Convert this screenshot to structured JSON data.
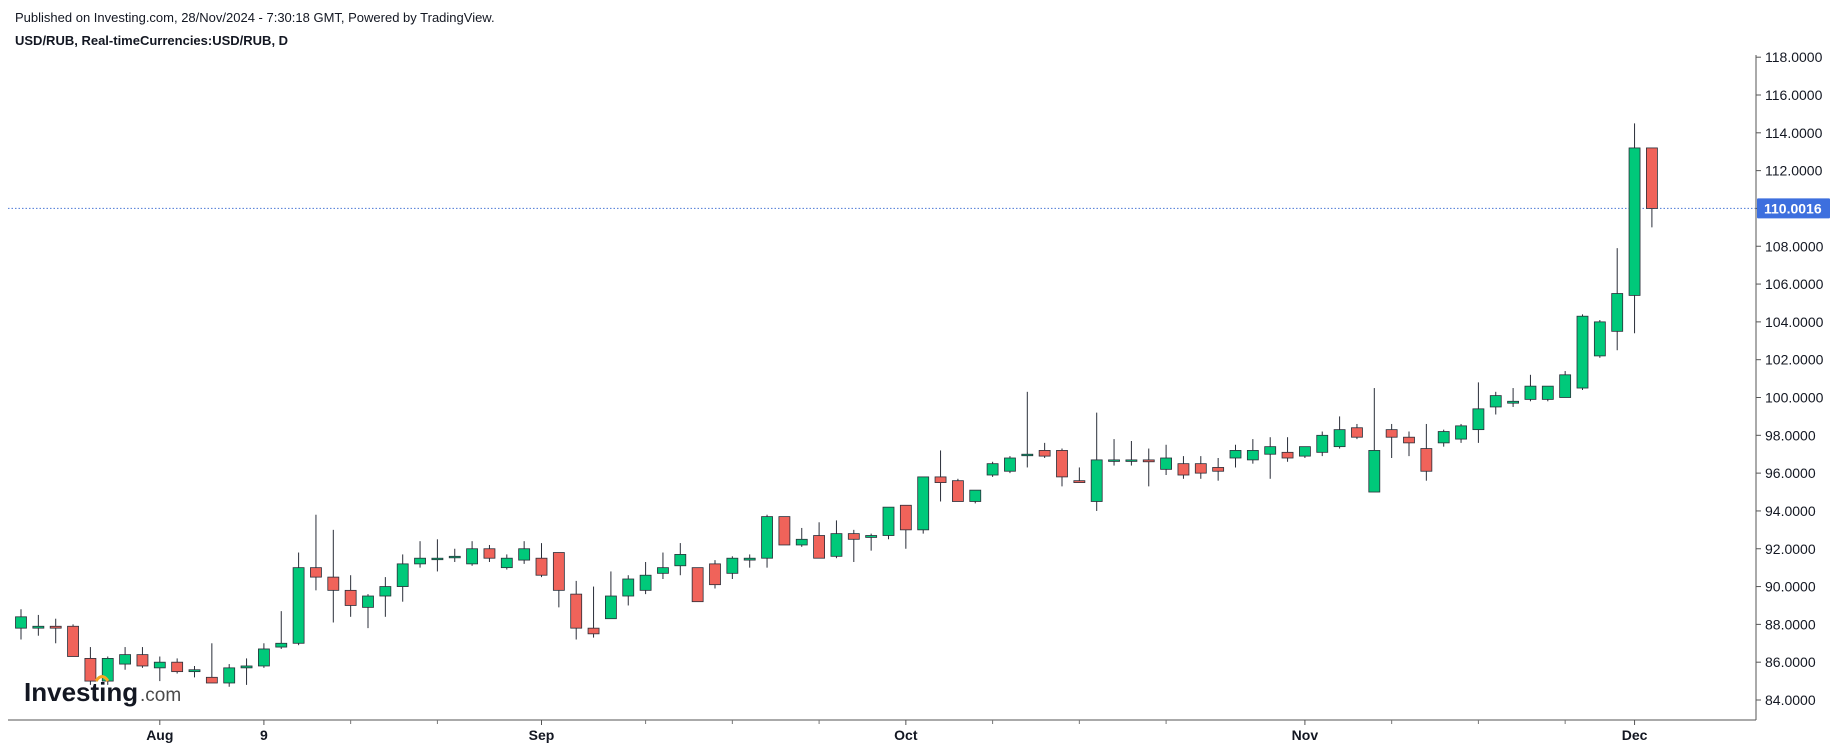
{
  "header": {
    "published": "Published on Investing.com, 28/Nov/2024 - 7:30:18 GMT, Powered by TradingView.",
    "symbol": "USD/RUB, Real-timeCurrencies:USD/RUB, D"
  },
  "logo": {
    "main": "Investing",
    "suffix": ".com"
  },
  "colors": {
    "up": "#00c97a",
    "down": "#f0635a",
    "wick": "#2a2e39",
    "price_line": "#4a78d6",
    "price_tag": "#3d6fde"
  },
  "chart_data": {
    "type": "candlestick",
    "y_ticks": [
      "84.0000",
      "86.0000",
      "88.0000",
      "90.0000",
      "92.0000",
      "94.0000",
      "96.0000",
      "98.0000",
      "100.0000",
      "102.0000",
      "104.0000",
      "106.0000",
      "108.0000",
      "110.0000",
      "112.0000",
      "114.0000",
      "116.0000",
      "118.0000"
    ],
    "ylim": [
      83.0,
      118.2
    ],
    "x_labels": [
      {
        "label": "Aug",
        "index": 8
      },
      {
        "label": "9",
        "index": 14
      },
      {
        "label": "Sep",
        "index": 30
      },
      {
        "label": "Oct",
        "index": 51
      },
      {
        "label": "Nov",
        "index": 74
      },
      {
        "label": "Dec",
        "index": 93
      }
    ],
    "x_minor_ticks": [
      19,
      24,
      36,
      41,
      46,
      56,
      61,
      66,
      79,
      84,
      89
    ],
    "last_price": "110.0016",
    "last_price_value": 110.0016,
    "candles": [
      {
        "o": 87.8,
        "h": 88.8,
        "l": 87.2,
        "c": 88.4
      },
      {
        "o": 87.8,
        "h": 88.5,
        "l": 87.4,
        "c": 87.9
      },
      {
        "o": 87.9,
        "h": 88.3,
        "l": 87.0,
        "c": 87.8
      },
      {
        "o": 87.9,
        "h": 88.0,
        "l": 86.3,
        "c": 86.3
      },
      {
        "o": 86.2,
        "h": 86.8,
        "l": 84.8,
        "c": 85.0
      },
      {
        "o": 85.0,
        "h": 86.3,
        "l": 84.8,
        "c": 86.2
      },
      {
        "o": 85.9,
        "h": 86.8,
        "l": 85.6,
        "c": 86.4
      },
      {
        "o": 86.4,
        "h": 86.8,
        "l": 85.7,
        "c": 85.8
      },
      {
        "o": 85.7,
        "h": 86.3,
        "l": 85.0,
        "c": 86.0
      },
      {
        "o": 86.0,
        "h": 86.2,
        "l": 85.4,
        "c": 85.5
      },
      {
        "o": 85.5,
        "h": 85.8,
        "l": 85.2,
        "c": 85.6
      },
      {
        "o": 85.2,
        "h": 87.0,
        "l": 84.9,
        "c": 84.9
      },
      {
        "o": 84.9,
        "h": 85.9,
        "l": 84.7,
        "c": 85.7
      },
      {
        "o": 85.7,
        "h": 86.2,
        "l": 84.8,
        "c": 85.8
      },
      {
        "o": 85.8,
        "h": 87.0,
        "l": 85.7,
        "c": 86.7
      },
      {
        "o": 86.8,
        "h": 88.7,
        "l": 86.7,
        "c": 87.0
      },
      {
        "o": 87.0,
        "h": 91.8,
        "l": 86.9,
        "c": 91.0
      },
      {
        "o": 91.0,
        "h": 93.8,
        "l": 89.8,
        "c": 90.5
      },
      {
        "o": 90.5,
        "h": 93.0,
        "l": 88.1,
        "c": 89.8
      },
      {
        "o": 89.8,
        "h": 90.6,
        "l": 88.4,
        "c": 89.0
      },
      {
        "o": 88.9,
        "h": 89.6,
        "l": 87.8,
        "c": 89.5
      },
      {
        "o": 89.5,
        "h": 90.5,
        "l": 88.4,
        "c": 90.0
      },
      {
        "o": 90.0,
        "h": 91.7,
        "l": 89.2,
        "c": 91.2
      },
      {
        "o": 91.2,
        "h": 92.4,
        "l": 91.0,
        "c": 91.5
      },
      {
        "o": 91.5,
        "h": 92.5,
        "l": 90.8,
        "c": 91.5
      },
      {
        "o": 91.6,
        "h": 92.0,
        "l": 91.3,
        "c": 91.6
      },
      {
        "o": 91.2,
        "h": 92.4,
        "l": 91.1,
        "c": 92.0
      },
      {
        "o": 92.0,
        "h": 92.2,
        "l": 91.3,
        "c": 91.5
      },
      {
        "o": 91.0,
        "h": 91.7,
        "l": 90.9,
        "c": 91.5
      },
      {
        "o": 91.4,
        "h": 92.4,
        "l": 91.2,
        "c": 92.0
      },
      {
        "o": 91.5,
        "h": 92.3,
        "l": 90.5,
        "c": 90.6
      },
      {
        "o": 91.8,
        "h": 91.8,
        "l": 88.9,
        "c": 89.8
      },
      {
        "o": 89.6,
        "h": 90.3,
        "l": 87.2,
        "c": 87.8
      },
      {
        "o": 87.8,
        "h": 90.0,
        "l": 87.3,
        "c": 87.5
      },
      {
        "o": 88.3,
        "h": 90.8,
        "l": 88.3,
        "c": 89.5
      },
      {
        "o": 89.5,
        "h": 90.6,
        "l": 89.0,
        "c": 90.4
      },
      {
        "o": 89.8,
        "h": 91.3,
        "l": 89.6,
        "c": 90.6
      },
      {
        "o": 90.7,
        "h": 91.8,
        "l": 90.4,
        "c": 91.0
      },
      {
        "o": 91.1,
        "h": 92.3,
        "l": 90.6,
        "c": 91.7
      },
      {
        "o": 91.0,
        "h": 91.0,
        "l": 89.2,
        "c": 89.2
      },
      {
        "o": 91.2,
        "h": 91.4,
        "l": 89.9,
        "c": 90.1
      },
      {
        "o": 90.7,
        "h": 91.6,
        "l": 90.4,
        "c": 91.5
      },
      {
        "o": 91.4,
        "h": 91.7,
        "l": 91.0,
        "c": 91.5
      },
      {
        "o": 91.5,
        "h": 93.8,
        "l": 91.0,
        "c": 93.7
      },
      {
        "o": 93.7,
        "h": 93.7,
        "l": 92.2,
        "c": 92.2
      },
      {
        "o": 92.2,
        "h": 93.1,
        "l": 92.1,
        "c": 92.5
      },
      {
        "o": 92.7,
        "h": 93.4,
        "l": 91.5,
        "c": 91.5
      },
      {
        "o": 91.6,
        "h": 93.5,
        "l": 91.5,
        "c": 92.8
      },
      {
        "o": 92.8,
        "h": 93.0,
        "l": 91.3,
        "c": 92.5
      },
      {
        "o": 92.6,
        "h": 92.8,
        "l": 91.9,
        "c": 92.7
      },
      {
        "o": 92.7,
        "h": 94.2,
        "l": 92.5,
        "c": 94.2
      },
      {
        "o": 94.3,
        "h": 94.3,
        "l": 92.0,
        "c": 93.0
      },
      {
        "o": 93.0,
        "h": 95.8,
        "l": 92.8,
        "c": 95.8
      },
      {
        "o": 95.8,
        "h": 97.2,
        "l": 94.5,
        "c": 95.5
      },
      {
        "o": 95.6,
        "h": 95.7,
        "l": 94.5,
        "c": 94.5
      },
      {
        "o": 94.5,
        "h": 95.1,
        "l": 94.4,
        "c": 95.1
      },
      {
        "o": 95.9,
        "h": 96.6,
        "l": 95.8,
        "c": 96.5
      },
      {
        "o": 96.1,
        "h": 96.9,
        "l": 96.0,
        "c": 96.8
      },
      {
        "o": 97.0,
        "h": 100.3,
        "l": 96.3,
        "c": 97.0
      },
      {
        "o": 97.2,
        "h": 97.6,
        "l": 96.8,
        "c": 96.9
      },
      {
        "o": 97.2,
        "h": 97.3,
        "l": 95.3,
        "c": 95.8
      },
      {
        "o": 95.6,
        "h": 96.3,
        "l": 95.5,
        "c": 95.5
      },
      {
        "o": 94.5,
        "h": 99.2,
        "l": 94.0,
        "c": 96.7
      },
      {
        "o": 96.7,
        "h": 97.8,
        "l": 96.4,
        "c": 96.7
      },
      {
        "o": 96.7,
        "h": 97.7,
        "l": 96.4,
        "c": 96.7
      },
      {
        "o": 96.7,
        "h": 97.3,
        "l": 95.3,
        "c": 96.6
      },
      {
        "o": 96.2,
        "h": 97.5,
        "l": 95.9,
        "c": 96.8
      },
      {
        "o": 96.5,
        "h": 96.9,
        "l": 95.7,
        "c": 95.9
      },
      {
        "o": 96.5,
        "h": 96.9,
        "l": 95.7,
        "c": 96.0
      },
      {
        "o": 96.3,
        "h": 96.8,
        "l": 95.6,
        "c": 96.1
      },
      {
        "o": 96.8,
        "h": 97.5,
        "l": 96.3,
        "c": 97.2
      },
      {
        "o": 96.7,
        "h": 97.8,
        "l": 96.5,
        "c": 97.2
      },
      {
        "o": 97.0,
        "h": 97.9,
        "l": 95.7,
        "c": 97.4
      },
      {
        "o": 97.1,
        "h": 97.9,
        "l": 96.6,
        "c": 96.8
      },
      {
        "o": 96.9,
        "h": 97.3,
        "l": 96.8,
        "c": 97.4
      },
      {
        "o": 97.1,
        "h": 98.2,
        "l": 96.9,
        "c": 98.0
      },
      {
        "o": 97.4,
        "h": 99.0,
        "l": 97.3,
        "c": 98.3
      },
      {
        "o": 98.4,
        "h": 98.6,
        "l": 97.8,
        "c": 97.9
      },
      {
        "o": 95.0,
        "h": 100.5,
        "l": 95.0,
        "c": 97.2
      },
      {
        "o": 98.3,
        "h": 98.6,
        "l": 96.8,
        "c": 97.9
      },
      {
        "o": 97.9,
        "h": 98.2,
        "l": 96.9,
        "c": 97.6
      },
      {
        "o": 97.3,
        "h": 98.6,
        "l": 95.6,
        "c": 96.1
      },
      {
        "o": 97.6,
        "h": 98.3,
        "l": 97.4,
        "c": 98.2
      },
      {
        "o": 97.8,
        "h": 98.6,
        "l": 97.6,
        "c": 98.5
      },
      {
        "o": 98.3,
        "h": 100.8,
        "l": 97.6,
        "c": 99.4
      },
      {
        "o": 99.5,
        "h": 100.3,
        "l": 99.1,
        "c": 100.1
      },
      {
        "o": 99.7,
        "h": 100.5,
        "l": 99.5,
        "c": 99.8
      },
      {
        "o": 99.9,
        "h": 101.2,
        "l": 99.8,
        "c": 100.6
      },
      {
        "o": 99.9,
        "h": 100.6,
        "l": 99.8,
        "c": 100.6
      },
      {
        "o": 100.0,
        "h": 101.4,
        "l": 100.0,
        "c": 101.2
      },
      {
        "o": 100.5,
        "h": 104.4,
        "l": 100.4,
        "c": 104.3
      },
      {
        "o": 102.2,
        "h": 104.1,
        "l": 102.1,
        "c": 104.0
      },
      {
        "o": 103.5,
        "h": 107.9,
        "l": 102.5,
        "c": 105.5
      },
      {
        "o": 105.4,
        "h": 114.5,
        "l": 103.4,
        "c": 113.2
      },
      {
        "o": 113.2,
        "h": 113.2,
        "l": 109.0,
        "c": 110.0
      }
    ]
  }
}
